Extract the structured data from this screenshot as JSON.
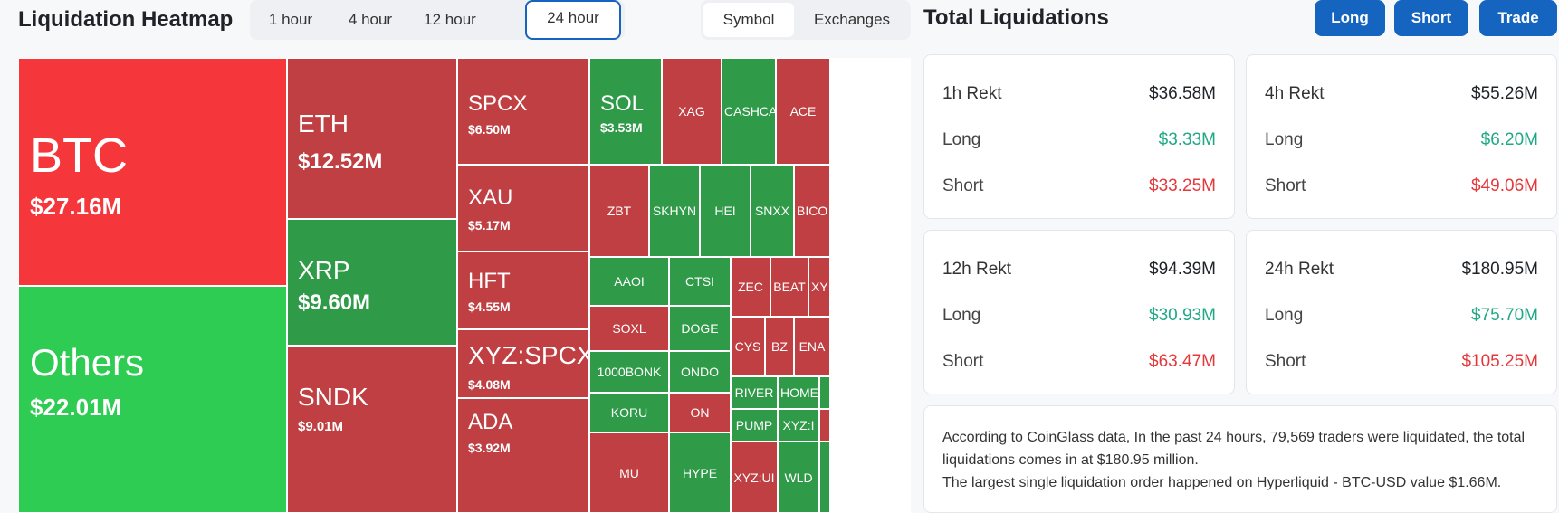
{
  "heatmap": {
    "title": "Liquidation Heatmap",
    "time_tabs": [
      {
        "label": "1 hour",
        "active": false
      },
      {
        "label": "4 hour",
        "active": false
      },
      {
        "label": "12 hour",
        "active": false
      },
      {
        "label": "24 hour",
        "active": true
      }
    ],
    "view_tabs": [
      {
        "label": "Symbol",
        "active": true
      },
      {
        "label": "Exchanges",
        "active": false
      }
    ],
    "colors": {
      "bright_red": "#f5363b",
      "bright_green": "#2ecc52",
      "dark_red": "#bf3f43",
      "dark_green": "#2f9a48"
    },
    "tiles": [
      {
        "symbol": "BTC",
        "value": "$27.16M"
      },
      {
        "symbol": "Others",
        "value": "$22.01M"
      },
      {
        "symbol": "ETH",
        "value": "$12.52M"
      },
      {
        "symbol": "XRP",
        "value": "$9.60M"
      },
      {
        "symbol": "SNDK",
        "value": "$9.01M"
      },
      {
        "symbol": "SPCX",
        "value": "$6.50M"
      },
      {
        "symbol": "XAU",
        "value": "$5.17M"
      },
      {
        "symbol": "HFT",
        "value": "$4.55M"
      },
      {
        "symbol": "XYZ:SPCX",
        "value": "$4.08M"
      },
      {
        "symbol": "ADA",
        "value": "$3.92M"
      },
      {
        "symbol": "SOL",
        "value": "$3.53M"
      },
      {
        "symbol": "XAG"
      },
      {
        "symbol": "CASHCA"
      },
      {
        "symbol": "ACE"
      },
      {
        "symbol": "ZBT"
      },
      {
        "symbol": "SKHYN"
      },
      {
        "symbol": "HEI"
      },
      {
        "symbol": "SNXX"
      },
      {
        "symbol": "BICO"
      },
      {
        "symbol": "AAOI"
      },
      {
        "symbol": "CTSI"
      },
      {
        "symbol": "ZEC"
      },
      {
        "symbol": "BEAT"
      },
      {
        "symbol": "XY"
      },
      {
        "symbol": "SOXL"
      },
      {
        "symbol": "DOGE"
      },
      {
        "symbol": "CYS"
      },
      {
        "symbol": "BZ"
      },
      {
        "symbol": "ENA"
      },
      {
        "symbol": "1000BONK"
      },
      {
        "symbol": "ONDO"
      },
      {
        "symbol": "RIVER"
      },
      {
        "symbol": "HOME"
      },
      {
        "symbol": "KORU"
      },
      {
        "symbol": "ON"
      },
      {
        "symbol": "PUMP"
      },
      {
        "symbol": "XYZ:I"
      },
      {
        "symbol": "MU"
      },
      {
        "symbol": "HYPE"
      },
      {
        "symbol": "XYZ:UI"
      },
      {
        "symbol": "WLD"
      }
    ]
  },
  "totals": {
    "title": "Total Liquidations",
    "buttons": {
      "long": "Long",
      "short": "Short",
      "trade": "Trade"
    },
    "cards": [
      {
        "title": "1h Rekt",
        "total": "$36.58M",
        "long_label": "Long",
        "long": "$3.33M",
        "short_label": "Short",
        "short": "$33.25M"
      },
      {
        "title": "4h Rekt",
        "total": "$55.26M",
        "long_label": "Long",
        "long": "$6.20M",
        "short_label": "Short",
        "short": "$49.06M"
      },
      {
        "title": "12h Rekt",
        "total": "$94.39M",
        "long_label": "Long",
        "long": "$30.93M",
        "short_label": "Short",
        "short": "$63.47M"
      },
      {
        "title": "24h Rekt",
        "total": "$180.95M",
        "long_label": "Long",
        "long": "$75.70M",
        "short_label": "Short",
        "short": "$105.25M"
      }
    ],
    "summary_line1": "According to CoinGlass data, In the past 24 hours, 79,569 traders were liquidated, the total liquidations comes in at $180.95 million.",
    "summary_line2": "The largest single liquidation order happened on Hyperliquid - BTC-USD value $1.66M."
  }
}
